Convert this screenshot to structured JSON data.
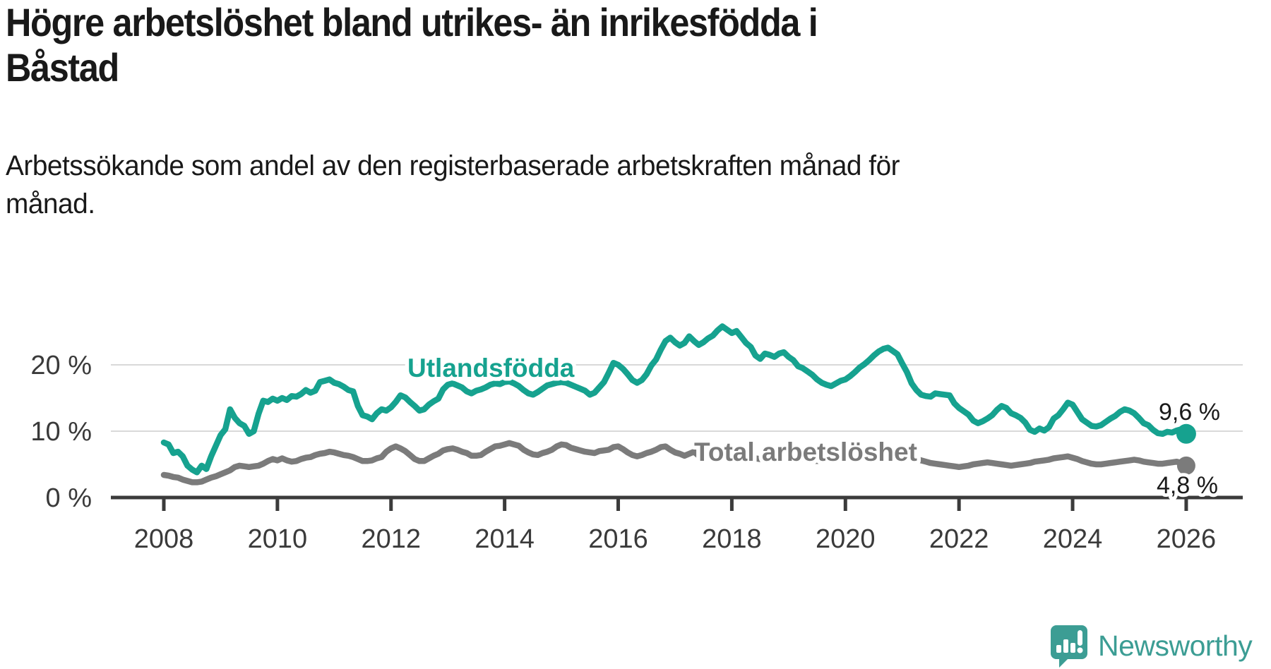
{
  "header": {
    "title": "Högre arbetslöshet bland utrikes- än inrikesfödda i\nBåstad",
    "subtitle": "Arbetssökande som andel av den registerbaserade arbetskraften månad för\nmånad."
  },
  "logo": {
    "text": "Newsworthy",
    "color": "#3c9d94",
    "icon": "speech-bubble-bar-chart"
  },
  "colors": {
    "foreign_born_line": "#16a28f",
    "total_line": "#7b7b7b",
    "axis": "#3b3b3b",
    "grid": "#d9d9d9",
    "value_label": "#1a1a1a"
  },
  "chart_data": {
    "type": "line",
    "title": "Högre arbetslöshet bland utrikes- än inrikesfödda i Båstad",
    "subtitle": "Arbetssökande som andel av den registerbaserade arbetskraften månad för månad.",
    "unit": "%",
    "x_axis": {
      "tick_labels": [
        "2008",
        "2010",
        "2012",
        "2014",
        "2016",
        "2018",
        "2020",
        "2022",
        "2024",
        "2026"
      ],
      "range": [
        2007.1,
        2027.0
      ],
      "grid": false
    },
    "y_axis": {
      "tick_labels": [
        "20 %",
        "10 %",
        "0 %"
      ],
      "tick_values": [
        20,
        10,
        0
      ],
      "range": [
        0,
        29
      ],
      "grid": true
    },
    "legend_position": "inline-labels",
    "sampling": "monthly",
    "start_year": 2008,
    "series": [
      {
        "name": "Utlandsfödda",
        "color": "#16a28f",
        "end_label": "9,6 %",
        "end_value": 9.6,
        "values": [
          8.3,
          8.0,
          6.7,
          6.9,
          6.2,
          4.8,
          4.2,
          3.8,
          4.8,
          4.3,
          6.2,
          7.8,
          9.4,
          10.3,
          13.3,
          12.0,
          11.2,
          10.8,
          9.6,
          10.0,
          12.6,
          14.6,
          14.4,
          14.9,
          14.6,
          15.0,
          14.7,
          15.3,
          15.2,
          15.6,
          16.2,
          15.8,
          16.1,
          17.4,
          17.6,
          17.8,
          17.3,
          17.1,
          16.7,
          16.2,
          16.0,
          13.8,
          12.4,
          12.2,
          11.8,
          12.7,
          13.3,
          13.1,
          13.6,
          14.4,
          15.4,
          15.1,
          14.4,
          13.8,
          13.1,
          13.3,
          14.0,
          14.5,
          14.9,
          16.3,
          17.0,
          17.2,
          16.9,
          16.6,
          16.0,
          15.7,
          16.1,
          16.3,
          16.6,
          17.0,
          17.2,
          17.1,
          17.4,
          17.5,
          17.2,
          16.8,
          16.2,
          15.7,
          15.5,
          15.9,
          16.4,
          16.9,
          17.1,
          17.3,
          17.4,
          17.3,
          17.0,
          16.7,
          16.4,
          16.1,
          15.5,
          15.8,
          16.6,
          17.4,
          18.8,
          20.3,
          20.0,
          19.4,
          18.6,
          17.7,
          17.3,
          17.7,
          18.6,
          19.9,
          20.8,
          22.3,
          23.6,
          24.1,
          23.4,
          22.9,
          23.3,
          24.3,
          23.6,
          23.0,
          23.4,
          24.0,
          24.4,
          25.2,
          25.8,
          25.3,
          24.8,
          25.1,
          24.2,
          23.3,
          22.7,
          21.4,
          20.9,
          21.7,
          21.5,
          21.2,
          21.7,
          21.9,
          21.2,
          20.7,
          19.8,
          19.5,
          19.0,
          18.5,
          17.8,
          17.3,
          17.0,
          16.8,
          17.2,
          17.6,
          17.8,
          18.3,
          18.9,
          19.6,
          20.1,
          20.7,
          21.4,
          22.0,
          22.4,
          22.6,
          22.1,
          21.6,
          20.2,
          18.9,
          17.2,
          16.2,
          15.5,
          15.3,
          15.2,
          15.7,
          15.6,
          15.5,
          15.4,
          14.2,
          13.5,
          13.0,
          12.5,
          11.6,
          11.2,
          11.5,
          11.9,
          12.4,
          13.2,
          13.8,
          13.5,
          12.7,
          12.4,
          12.0,
          11.3,
          10.2,
          9.9,
          10.4,
          10.1,
          10.6,
          11.9,
          12.4,
          13.3,
          14.3,
          14.0,
          12.9,
          11.8,
          11.3,
          10.8,
          10.7,
          10.9,
          11.4,
          11.9,
          12.3,
          12.9,
          13.3,
          13.1,
          12.7,
          12.0,
          11.2,
          10.9,
          10.2,
          9.7,
          9.6,
          9.9,
          9.8,
          10.1,
          10.3,
          9.6
        ]
      },
      {
        "name": "Total arbetslöshet",
        "color": "#7b7b7b",
        "end_label": "4,8 %",
        "end_value": 4.8,
        "values": [
          3.4,
          3.3,
          3.1,
          3.0,
          2.7,
          2.5,
          2.3,
          2.3,
          2.4,
          2.7,
          3.0,
          3.2,
          3.5,
          3.8,
          4.1,
          4.6,
          4.8,
          4.7,
          4.6,
          4.7,
          4.8,
          5.1,
          5.5,
          5.8,
          5.6,
          5.9,
          5.6,
          5.4,
          5.5,
          5.8,
          6.0,
          6.1,
          6.4,
          6.6,
          6.7,
          6.9,
          6.8,
          6.6,
          6.4,
          6.3,
          6.1,
          5.8,
          5.5,
          5.5,
          5.6,
          5.9,
          6.1,
          6.9,
          7.4,
          7.7,
          7.4,
          7.0,
          6.4,
          5.8,
          5.5,
          5.5,
          5.9,
          6.3,
          6.6,
          7.1,
          7.3,
          7.4,
          7.2,
          6.9,
          6.7,
          6.3,
          6.3,
          6.4,
          6.9,
          7.3,
          7.7,
          7.8,
          8.0,
          8.2,
          8.0,
          7.8,
          7.2,
          6.8,
          6.5,
          6.4,
          6.7,
          6.9,
          7.2,
          7.7,
          8.0,
          7.9,
          7.5,
          7.3,
          7.1,
          6.9,
          6.8,
          6.7,
          7.0,
          7.1,
          7.2,
          7.6,
          7.7,
          7.3,
          6.8,
          6.4,
          6.2,
          6.4,
          6.7,
          6.9,
          7.2,
          7.6,
          7.7,
          7.2,
          6.8,
          6.6,
          6.3,
          6.6,
          6.9,
          6.3,
          6.2,
          6.3,
          6.5,
          6.7,
          6.8,
          6.9,
          6.8,
          6.6,
          6.4,
          6.2,
          6.0,
          5.9,
          5.8,
          5.9,
          6.0,
          6.1,
          6.2,
          6.3,
          6.2,
          6.1,
          5.9,
          5.8,
          5.7,
          5.6,
          5.5,
          5.6,
          5.7,
          5.8,
          5.9,
          6.0,
          6.1,
          6.3,
          6.6,
          6.9,
          7.1,
          7.2,
          7.3,
          7.2,
          7.1,
          7.0,
          6.8,
          6.6,
          6.4,
          6.2,
          6.0,
          5.8,
          5.6,
          5.4,
          5.2,
          5.1,
          5.0,
          4.9,
          4.8,
          4.7,
          4.6,
          4.7,
          4.8,
          5.0,
          5.1,
          5.2,
          5.3,
          5.2,
          5.1,
          5.0,
          4.9,
          4.8,
          4.9,
          5.0,
          5.1,
          5.2,
          5.4,
          5.5,
          5.6,
          5.7,
          5.9,
          6.0,
          6.1,
          6.2,
          6.0,
          5.8,
          5.5,
          5.3,
          5.1,
          5.0,
          5.0,
          5.1,
          5.2,
          5.3,
          5.4,
          5.5,
          5.6,
          5.7,
          5.6,
          5.4,
          5.3,
          5.2,
          5.1,
          5.1,
          5.2,
          5.3,
          5.4,
          5.2,
          4.8
        ]
      }
    ]
  }
}
